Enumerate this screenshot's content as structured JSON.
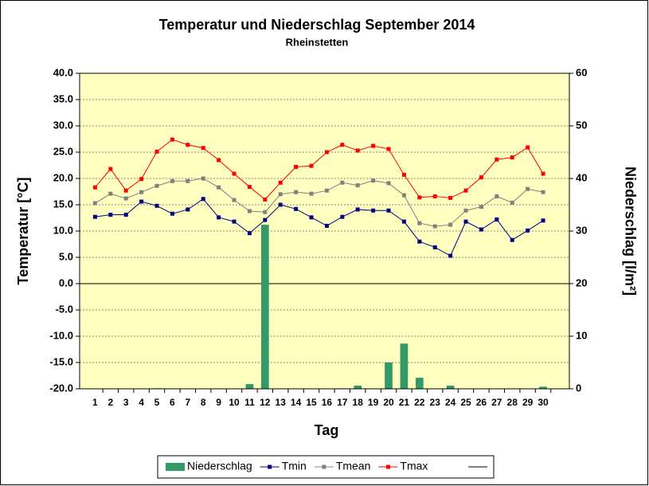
{
  "chart_data": {
    "type": "bar",
    "title": "Temperatur und Niederschlag  September 2014",
    "subtitle": "Rheinstetten",
    "x_label": "Tag",
    "y_label": "Temperatur [°C]",
    "y2_label": "Niederschlag [l/m²]",
    "categories": [
      "1",
      "2",
      "3",
      "4",
      "5",
      "6",
      "7",
      "8",
      "9",
      "10",
      "11",
      "12",
      "13",
      "14",
      "15",
      "16",
      "17",
      "18",
      "19",
      "20",
      "21",
      "22",
      "23",
      "24",
      "25",
      "26",
      "27",
      "28",
      "29",
      "30"
    ],
    "ylim": [
      -20,
      40
    ],
    "yticks": [
      {
        "value": -20,
        "label": "-20.0"
      },
      {
        "value": -15,
        "label": "-15.0"
      },
      {
        "value": -10,
        "label": "-10.0"
      },
      {
        "value": -5,
        "label": "-5.0"
      },
      {
        "value": 0,
        "label": "0.0"
      },
      {
        "value": 5,
        "label": "5.0"
      },
      {
        "value": 10,
        "label": "10.0"
      },
      {
        "value": 15,
        "label": "15.0"
      },
      {
        "value": 20,
        "label": "20.0"
      },
      {
        "value": 25,
        "label": "25.0"
      },
      {
        "value": 30,
        "label": "30.0"
      },
      {
        "value": 35,
        "label": "35.0"
      },
      {
        "value": 40,
        "label": "40.0"
      }
    ],
    "y2lim": [
      0,
      60
    ],
    "y2ticks": [
      0,
      10,
      20,
      30,
      40,
      50,
      60
    ],
    "grid": true,
    "legend": "bottom",
    "series": [
      {
        "name": "Niederschlag",
        "type": "bar",
        "axis": "y2",
        "color": "#339966",
        "values": [
          0,
          0,
          0,
          0,
          0.1,
          0,
          0,
          0,
          0,
          0,
          0.9,
          31.2,
          0,
          0,
          0,
          0,
          0.1,
          0.6,
          0,
          5.0,
          8.6,
          2.1,
          0,
          0.6,
          0,
          0,
          0,
          0,
          0,
          0.4
        ]
      },
      {
        "name": "Tmin",
        "type": "line",
        "color": "#000080",
        "values": [
          12.7,
          13.1,
          13.1,
          15.6,
          14.8,
          13.3,
          14.1,
          16.1,
          12.6,
          11.8,
          9.6,
          12.1,
          15.0,
          14.2,
          12.6,
          11.0,
          12.7,
          14.1,
          13.9,
          13.9,
          11.8,
          8.0,
          6.9,
          5.3,
          11.8,
          10.3,
          12.2,
          8.3,
          10.1,
          12.0
        ]
      },
      {
        "name": "Tmean",
        "type": "line",
        "color": "#808080",
        "values": [
          15.3,
          17.1,
          16.2,
          17.4,
          18.6,
          19.5,
          19.5,
          20.0,
          18.3,
          15.9,
          13.8,
          13.6,
          17.0,
          17.4,
          17.1,
          17.7,
          19.2,
          18.7,
          19.6,
          19.1,
          16.8,
          11.5,
          10.9,
          11.2,
          13.9,
          14.6,
          16.6,
          15.4,
          18.0,
          17.4
        ]
      },
      {
        "name": "Tmax",
        "type": "line",
        "color": "#ff0000",
        "values": [
          18.3,
          21.8,
          17.7,
          19.9,
          25.1,
          27.4,
          26.4,
          25.8,
          23.5,
          20.9,
          18.4,
          16.0,
          19.2,
          22.2,
          22.4,
          25.0,
          26.4,
          25.3,
          26.2,
          25.6,
          20.7,
          16.4,
          16.6,
          16.3,
          17.7,
          20.2,
          23.6,
          24.0,
          25.9,
          20.9
        ]
      }
    ]
  }
}
